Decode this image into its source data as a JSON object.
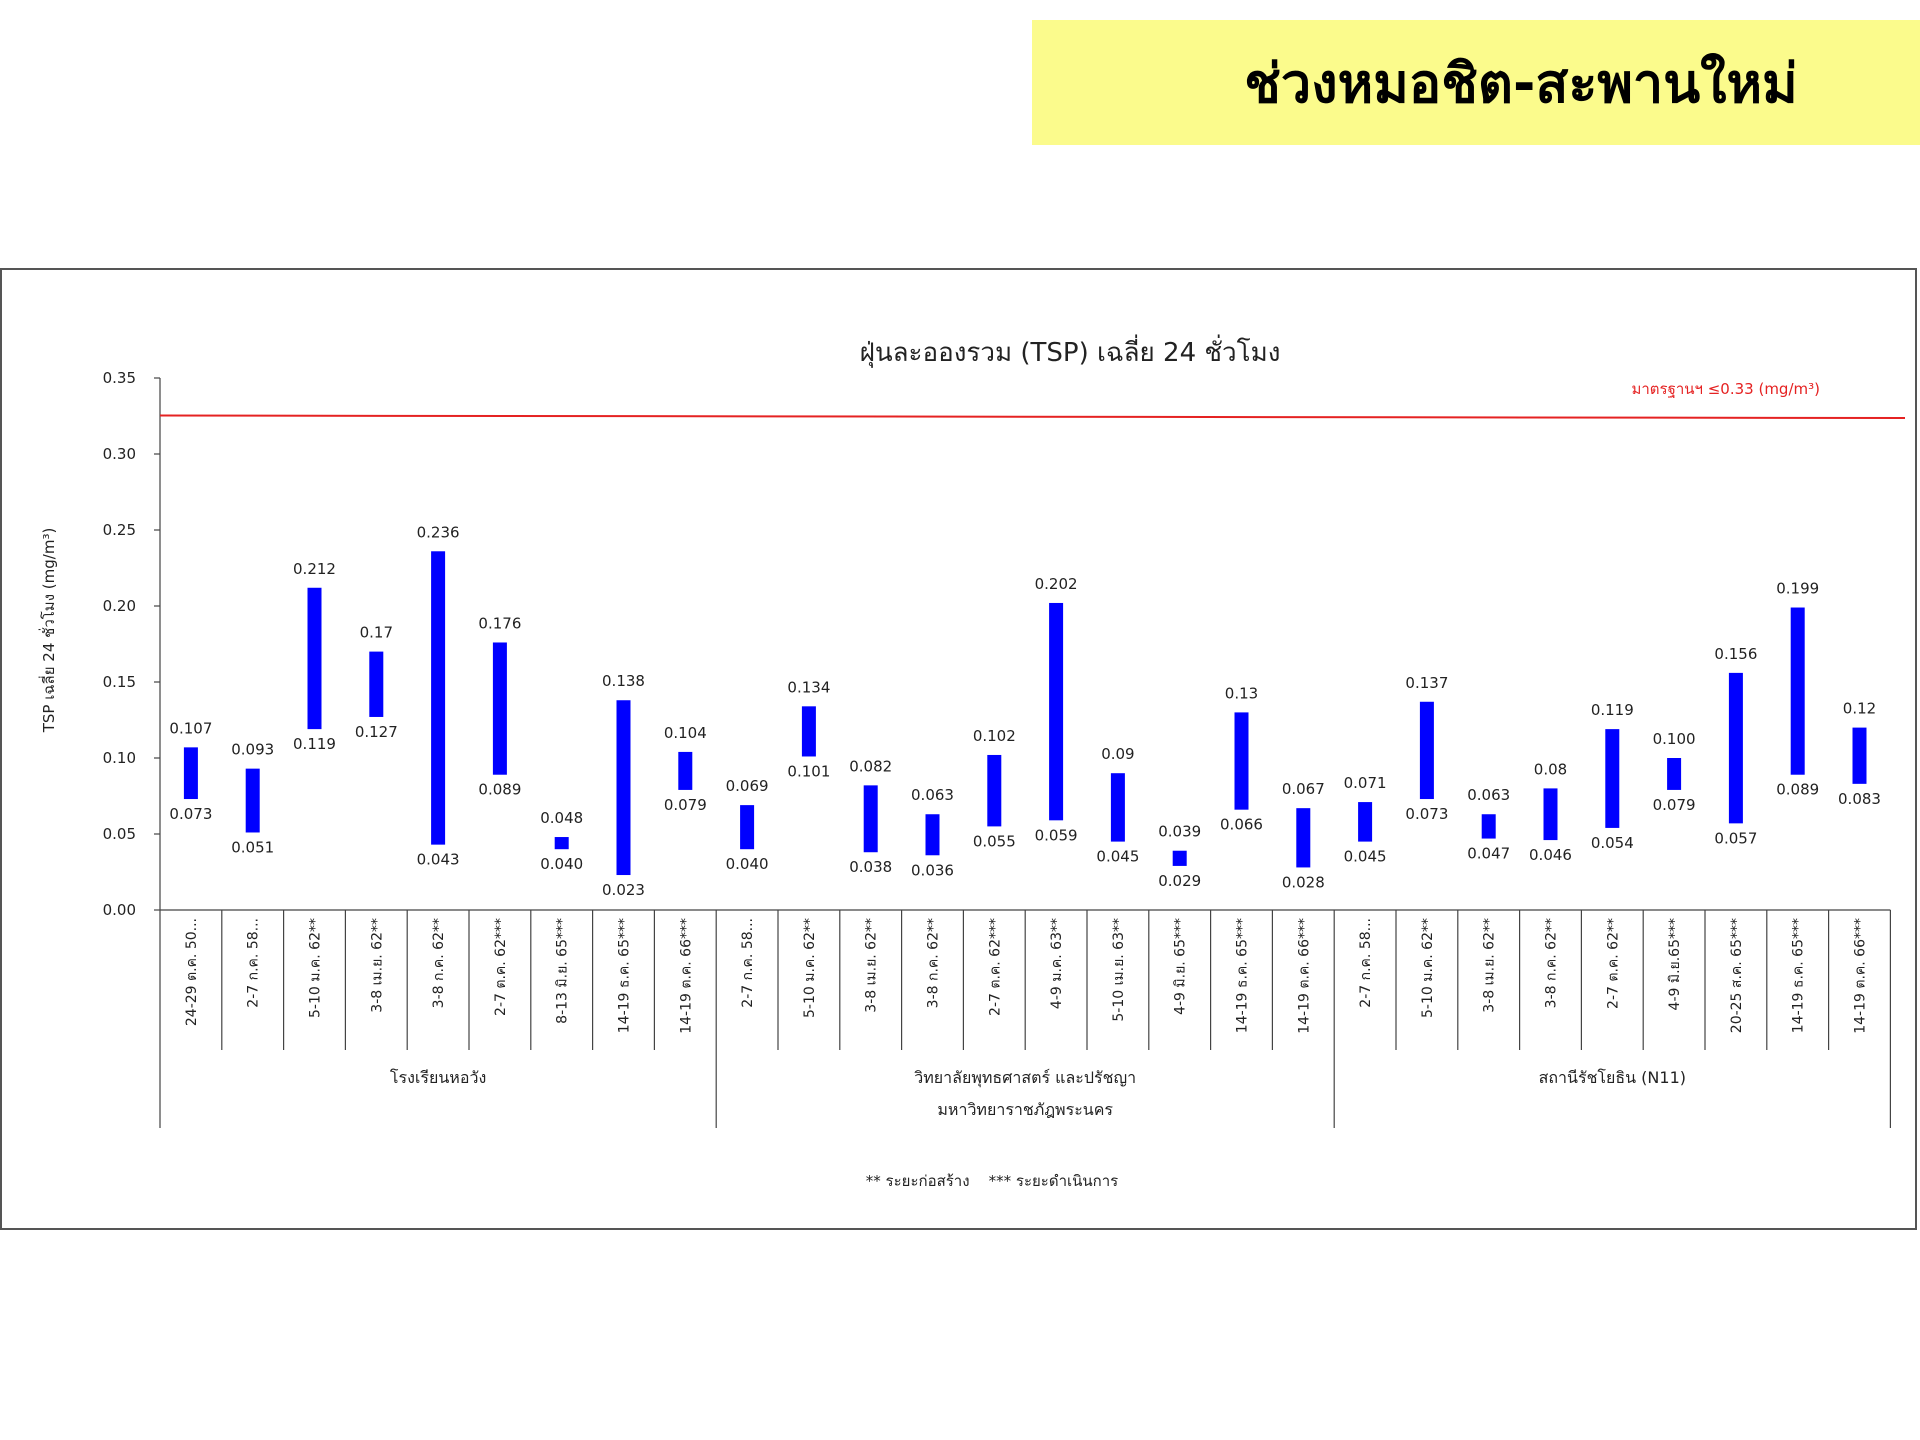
{
  "banner": {
    "title": "ช่วงหมอชิต-สะพานใหม่",
    "background": "#fbfb8c"
  },
  "chart_data": {
    "type": "bar",
    "subtype": "floating-range",
    "title": "ฝุ่นละอองรวม (TSP) เฉลี่ย 24 ชั่วโมง",
    "ylabel": "TSP เฉลี่ย 24 ชั่วโมง (mg/m³)",
    "ylim": [
      0,
      0.35
    ],
    "yticks": [
      "0.00",
      "0.05",
      "0.10",
      "0.15",
      "0.20",
      "0.25",
      "0.30",
      "0.35"
    ],
    "bar_color": "#0000ff",
    "standard": {
      "value": 0.325,
      "label": "มาตรฐานฯ ≤0.33 (mg/m³)",
      "color": "#e52222"
    },
    "groups": [
      {
        "name": "โรงเรียนหอวัง",
        "items": [
          {
            "date": "24-29 ต.ค. 50...",
            "max": "0.107",
            "min": "0.073"
          },
          {
            "date": "2-7 ก.ค. 58...",
            "max": "0.093",
            "min": "0.051"
          },
          {
            "date": "5-10 ม.ค. 62**",
            "max": "0.212",
            "min": "0.119"
          },
          {
            "date": "3-8 เม.ย. 62**",
            "max": "0.17",
            "min": "0.127"
          },
          {
            "date": "3-8 ก.ค. 62**",
            "max": "0.236",
            "min": "0.043"
          },
          {
            "date": "2-7 ต.ค. 62***",
            "max": "0.176",
            "min": "0.089"
          },
          {
            "date": "8-13 มิ.ย. 65***",
            "max": "0.048",
            "min": "0.040"
          },
          {
            "date": "14-19 ธ.ค. 65***",
            "max": "0.138",
            "min": "0.023"
          },
          {
            "date": "14-19 ต.ค. 66***",
            "max": "0.104",
            "min": "0.079"
          }
        ]
      },
      {
        "name": "วิทยาลัยพุทธศาสตร์ และปรัชญา",
        "name2": "มหาวิทยาราชภัฎพระนคร",
        "items": [
          {
            "date": "2-7 ก.ค. 58...",
            "max": "0.069",
            "min": "0.040"
          },
          {
            "date": "5-10 ม.ค. 62**",
            "max": "0.134",
            "min": "0.101"
          },
          {
            "date": "3-8 เม.ย. 62**",
            "max": "0.082",
            "min": "0.038"
          },
          {
            "date": "3-8 ก.ค. 62**",
            "max": "0.063",
            "min": "0.036"
          },
          {
            "date": "2-7 ต.ค. 62***",
            "max": "0.102",
            "min": "0.055"
          },
          {
            "date": "4-9 ม.ค. 63**",
            "max": "0.202",
            "min": "0.059"
          },
          {
            "date": "5-10 เม.ย. 63**",
            "max": "0.09",
            "min": "0.045"
          },
          {
            "date": "4-9 มิ.ย. 65***",
            "max": "0.039",
            "min": "0.029"
          },
          {
            "date": "14-19 ธ.ค. 65***",
            "max": "0.13",
            "min": "0.066"
          },
          {
            "date": "14-19 ต.ค. 66***",
            "max": "0.067",
            "min": "0.028"
          }
        ]
      },
      {
        "name": "สถานีรัชโยธิน (N11)",
        "items": [
          {
            "date": "2-7 ก.ค. 58...",
            "max": "0.071",
            "min": "0.045"
          },
          {
            "date": "5-10 ม.ค. 62**",
            "max": "0.137",
            "min": "0.073"
          },
          {
            "date": "3-8 เม.ย. 62**",
            "max": "0.063",
            "min": "0.047"
          },
          {
            "date": "3-8 ก.ค. 62**",
            "max": "0.08",
            "min": "0.046"
          },
          {
            "date": "2-7 ต.ค. 62**",
            "max": "0.119",
            "min": "0.054"
          },
          {
            "date": "4-9 มิ.ย.65***",
            "max": "0.100",
            "min": "0.079"
          },
          {
            "date": "20-25 ส.ค. 65***",
            "max": "0.156",
            "min": "0.057"
          },
          {
            "date": "14-19 ธ.ค. 65***",
            "max": "0.199",
            "min": "0.089"
          },
          {
            "date": "14-19 ต.ค. 66***",
            "max": "0.12",
            "min": "0.083"
          }
        ]
      }
    ],
    "footnote": "** ระยะก่อสร้าง    *** ระยะดำเนินการ"
  }
}
